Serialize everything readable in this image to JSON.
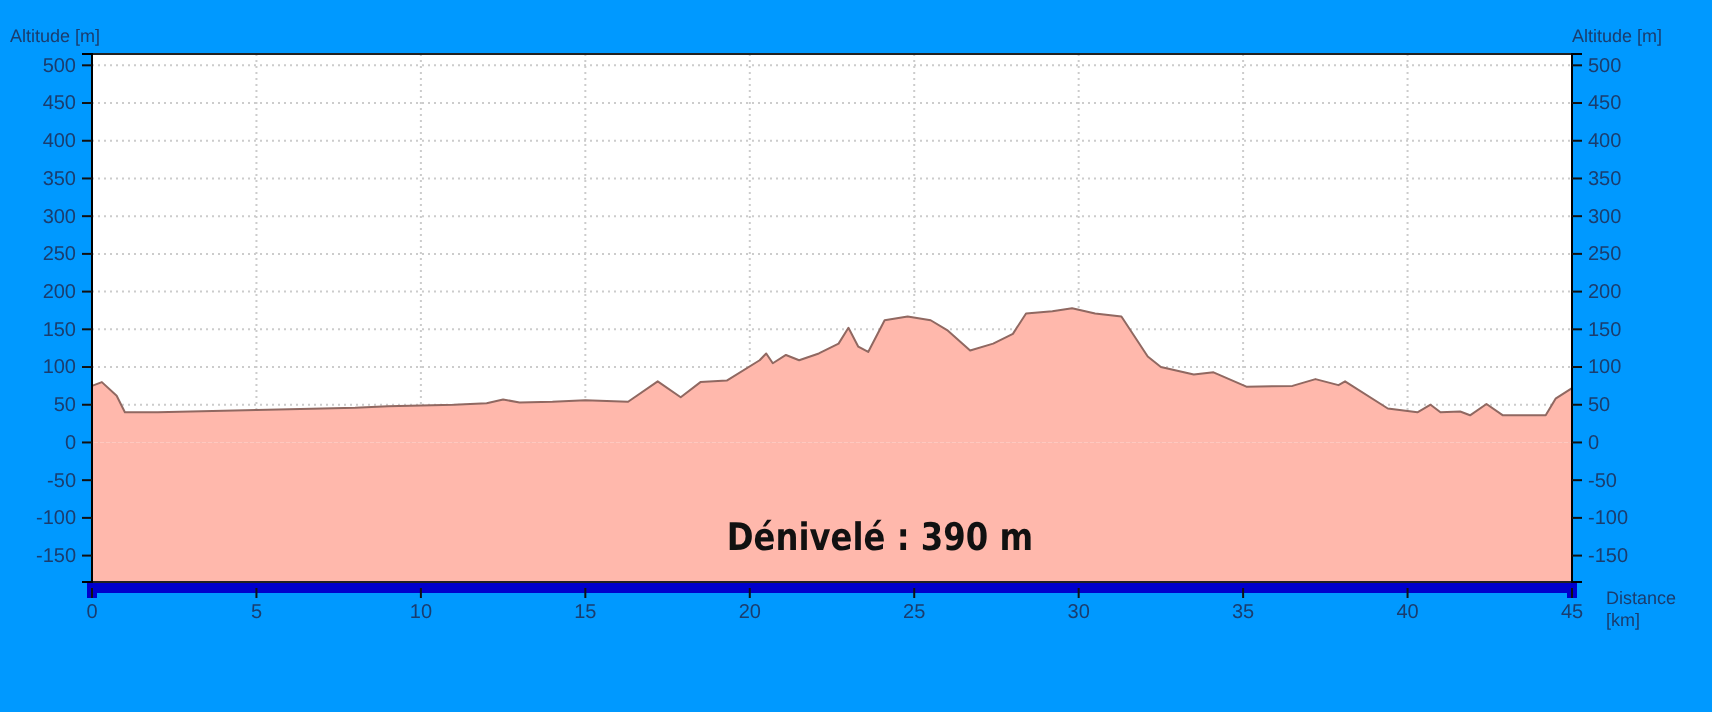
{
  "chart_data": {
    "type": "area",
    "ylabel": "Altitude [m]",
    "y2label": "Altitude [m]",
    "xlabel": "Distance [km]",
    "annotations": [
      "Dénivelé : 390 m"
    ],
    "xlim": [
      0,
      45
    ],
    "xticks": [
      0,
      5,
      10,
      15,
      20,
      25,
      30,
      35,
      40,
      45
    ],
    "ylim": [
      -185,
      515
    ],
    "yticks": [
      -150,
      -100,
      -50,
      0,
      50,
      100,
      150,
      200,
      250,
      300,
      350,
      400,
      450,
      500
    ],
    "y2lim": [
      -185,
      515
    ],
    "y2ticks": [
      -150,
      -100,
      -50,
      0,
      50,
      100,
      150,
      200,
      250,
      300,
      350,
      400,
      450,
      500
    ],
    "grid": true,
    "bands": [
      {
        "axis": "y",
        "from": -185,
        "to": 0,
        "color": "#ffb8ac"
      }
    ],
    "series": [
      {
        "color": "#ffb8ac",
        "x": [
          0,
          0.3,
          0.75,
          1.0,
          2,
          3,
          4,
          5,
          6,
          7,
          8,
          9,
          10,
          11,
          12,
          12.5,
          13,
          14,
          15,
          16.3,
          17.2,
          17.9,
          18.5,
          19.3,
          20.3,
          20.5,
          20.7,
          21.1,
          21.5,
          22.1,
          22.7,
          23.0,
          23.3,
          23.6,
          24.1,
          24.8,
          25.5,
          26.0,
          26.7,
          27.4,
          28.0,
          28.4,
          29.2,
          29.8,
          30.5,
          31.3,
          32.1,
          32.5,
          33.5,
          34.1,
          35.1,
          36.5,
          37.2,
          37.9,
          38.1,
          39.4,
          40.3,
          40.7,
          41.0,
          41.6,
          41.9,
          42.4,
          42.9,
          44.2,
          44.5,
          45
        ],
        "values": [
          75,
          80,
          62,
          40,
          40,
          41,
          42,
          43,
          44,
          45,
          46,
          48,
          49,
          50,
          52,
          57,
          53,
          54,
          56,
          54,
          81,
          60,
          80,
          82,
          109,
          118,
          105,
          116,
          109,
          118,
          131,
          152,
          127,
          120,
          162,
          167,
          162,
          149,
          122,
          131,
          144,
          171,
          174,
          178,
          171,
          167,
          114,
          100,
          90,
          93,
          74,
          75,
          84,
          76,
          81,
          45,
          40,
          50,
          40,
          41,
          36,
          51,
          36,
          36,
          58,
          72
        ]
      }
    ]
  }
}
